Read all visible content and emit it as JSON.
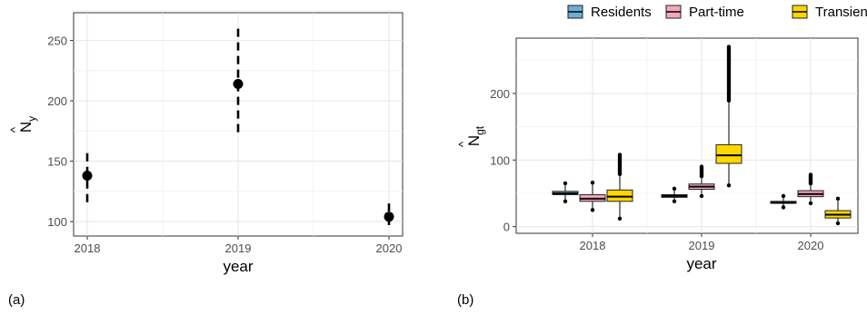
{
  "panels": {
    "a": {
      "tag": "(a)"
    },
    "b": {
      "tag": "(b)"
    }
  },
  "chart_data": [
    {
      "type": "scatter",
      "title": "",
      "xlabel": "year",
      "ylabel": "N̂y",
      "ylabel_base": "N",
      "ylabel_sub": "y",
      "x": [
        "2018",
        "2019",
        "2020"
      ],
      "ylim": [
        88,
        273
      ],
      "yticks": [
        100,
        150,
        200,
        250
      ],
      "grid": true,
      "points": [
        {
          "x": "2018",
          "y": 138,
          "ci_low": 116,
          "ci_high": 158
        },
        {
          "x": "2019",
          "y": 214,
          "ci_low": 174,
          "ci_high": 262
        },
        {
          "x": "2020",
          "y": 104,
          "ci_low": 97,
          "ci_high": 115
        }
      ]
    },
    {
      "type": "box",
      "title": "",
      "xlabel": "year",
      "ylabel": "N̂gt",
      "ylabel_base": "N",
      "ylabel_sub": "gt",
      "categories": [
        "2018",
        "2019",
        "2020"
      ],
      "ylim": [
        -10,
        283
      ],
      "yticks": [
        0,
        100,
        200
      ],
      "grid": true,
      "legend": {
        "position": "top",
        "entries": [
          "Residents",
          "Part-time",
          "Transients"
        ]
      },
      "colors": {
        "Residents": "#6baed6",
        "Part-time": "#f4a7b9",
        "Transients": "#ffd700"
      },
      "series": [
        {
          "name": "Residents",
          "boxes": [
            {
              "category": "2018",
              "min": 38,
              "q1": 48,
              "median": 50,
              "q3": 53,
              "max": 65
            },
            {
              "category": "2019",
              "min": 38,
              "q1": 44,
              "median": 46,
              "q3": 48,
              "max": 57
            },
            {
              "category": "2020",
              "min": 29,
              "q1": 35,
              "median": 36,
              "q3": 38,
              "max": 46
            }
          ]
        },
        {
          "name": "Part-time",
          "boxes": [
            {
              "category": "2018",
              "min": 25,
              "q1": 38,
              "median": 42,
              "q3": 48,
              "max": 66
            },
            {
              "category": "2019",
              "min": 46,
              "q1": 56,
              "median": 60,
              "q3": 64,
              "max": 90
            },
            {
              "category": "2020",
              "min": 35,
              "q1": 45,
              "median": 49,
              "q3": 54,
              "max": 78
            }
          ]
        },
        {
          "name": "Transients",
          "boxes": [
            {
              "category": "2018",
              "min": 12,
              "q1": 38,
              "median": 45,
              "q3": 55,
              "max": 108
            },
            {
              "category": "2019",
              "min": 62,
              "q1": 95,
              "median": 107,
              "q3": 123,
              "max": 270
            },
            {
              "category": "2020",
              "min": 5,
              "q1": 13,
              "median": 18,
              "q3": 24,
              "max": 42
            }
          ]
        }
      ]
    }
  ]
}
